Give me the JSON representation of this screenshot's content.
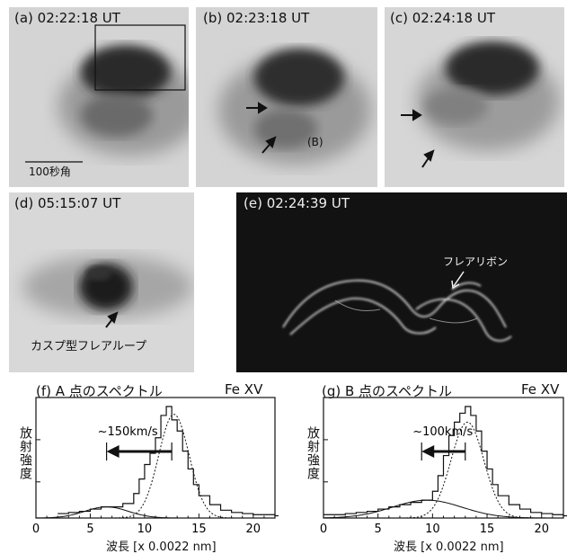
{
  "figure": {
    "panels": [
      {
        "id": "a",
        "label": "(a) 02:22:18 UT"
      },
      {
        "id": "b",
        "label": "(b) 02:23:18 UT"
      },
      {
        "id": "c",
        "label": "(c) 02:24:18 UT"
      },
      {
        "id": "d",
        "label": "(d) 05:15:07 UT"
      },
      {
        "id": "e",
        "label": "(e) 02:24:39 UT"
      }
    ],
    "scale_bar_label": "100秒角",
    "point_b_label": "(B)",
    "cusp_label": "カスプ型フレアループ",
    "ribbon_label": "フレアリボン"
  },
  "chart_data": [
    {
      "type": "step",
      "title": "(f) A 点のスペクトル",
      "line_name": "Fe XV",
      "xlabel": "波長 [x 0.0022 nm]",
      "ylabel": "放射強度",
      "xlim": [
        0,
        22
      ],
      "xticks": [
        0,
        5,
        10,
        15,
        20
      ],
      "velocity_label": "~150km/s",
      "arrow_from_x": 12.5,
      "arrow_to_x": 6.5,
      "histogram_x": [
        2,
        3,
        4,
        5,
        6,
        7,
        8,
        9,
        9.5,
        10,
        10.5,
        11,
        11.5,
        12,
        12.5,
        13,
        13.5,
        14,
        14.5,
        15,
        16,
        17,
        18,
        19,
        20,
        21,
        22
      ],
      "histogram_y": [
        0.04,
        0.05,
        0.06,
        0.08,
        0.1,
        0.1,
        0.13,
        0.22,
        0.35,
        0.48,
        0.58,
        0.72,
        0.92,
        1.0,
        0.88,
        0.78,
        0.6,
        0.44,
        0.3,
        0.2,
        0.12,
        0.07,
        0.05,
        0.04,
        0.03,
        0.03,
        0.02
      ],
      "main_gaussian": {
        "center": 12.7,
        "sigma": 1.4,
        "amp": 0.93
      },
      "secondary_gaussian": {
        "center": 6.5,
        "sigma": 2.0,
        "amp": 0.1
      }
    },
    {
      "type": "step",
      "title": "(g) B 点のスペクトル",
      "line_name": "Fe XV",
      "xlabel": "波長 [x 0.0022 nm]",
      "ylabel": "放射強度",
      "xlim": [
        0,
        22
      ],
      "xticks": [
        0,
        5,
        10,
        15,
        20
      ],
      "velocity_label": "~100km/s",
      "arrow_from_x": 13.0,
      "arrow_to_x": 9.0,
      "histogram_x": [
        0,
        1,
        2,
        3,
        4,
        5,
        6,
        7,
        8,
        9,
        10,
        10.5,
        11,
        11.5,
        12,
        12.5,
        13,
        13.5,
        14,
        14.5,
        15,
        15.5,
        16,
        17,
        18,
        19,
        20,
        21,
        22
      ],
      "histogram_y": [
        0.03,
        0.03,
        0.04,
        0.05,
        0.06,
        0.08,
        0.1,
        0.12,
        0.14,
        0.16,
        0.24,
        0.38,
        0.56,
        0.74,
        0.86,
        0.94,
        1.0,
        0.92,
        0.78,
        0.6,
        0.44,
        0.3,
        0.2,
        0.12,
        0.08,
        0.05,
        0.04,
        0.03,
        0.02
      ],
      "main_gaussian": {
        "center": 13.2,
        "sigma": 1.5,
        "amp": 0.86
      },
      "secondary_gaussian": {
        "center": 9.5,
        "sigma": 3.2,
        "amp": 0.16
      }
    }
  ],
  "colors": {
    "panel_gray": "#d8d8d8",
    "panel_dark": "#111111",
    "ink": "#111111"
  }
}
